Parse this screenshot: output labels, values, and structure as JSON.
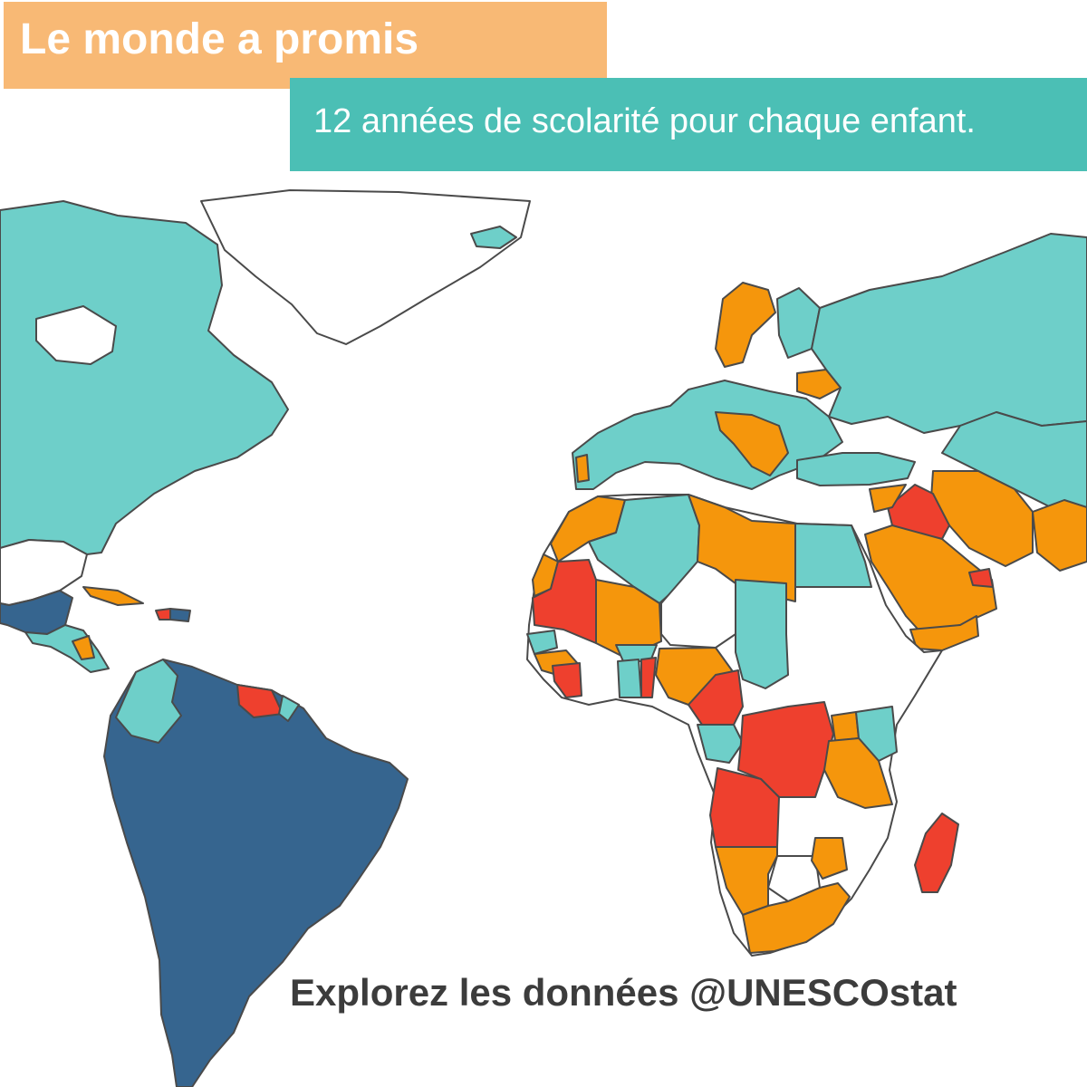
{
  "title": "Le monde a promis",
  "subtitle": "12 années de scolarité pour chaque enfant.",
  "footer": "Explorez les données @UNESCOstat",
  "colors": {
    "title_bg": "#f8b975",
    "subtitle_bg": "#4bbfb5",
    "category_teal": "#6ecfc9",
    "category_orange": "#f5960c",
    "category_red": "#ee402e",
    "category_navy": "#36658f",
    "no_data": "#ffffff",
    "border": "#4a4a4a"
  }
}
